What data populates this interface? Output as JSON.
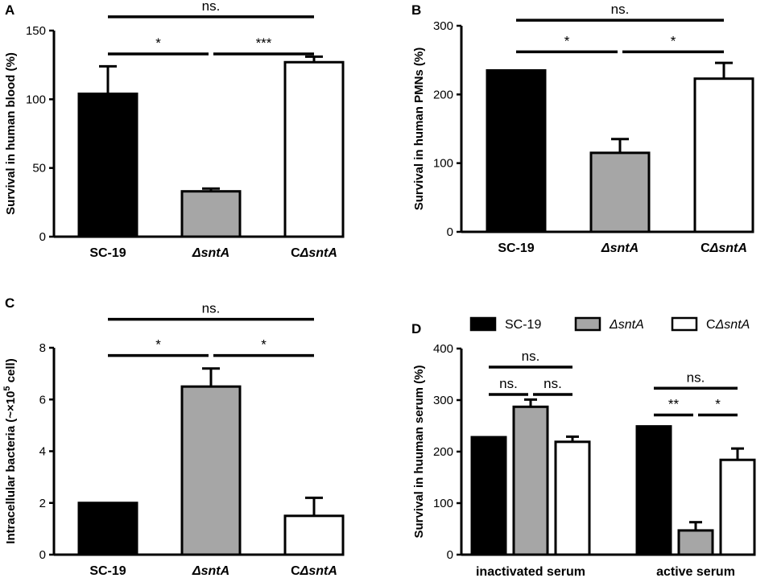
{
  "colors": {
    "bar_black": "#000000",
    "bar_gray": "#a6a6a6",
    "bar_white": "#ffffff",
    "stroke": "#000000"
  },
  "chart_data": [
    {
      "panel": "A",
      "type": "bar",
      "ylabel": "Survival in human blood (%)",
      "ylim": [
        0,
        150
      ],
      "yticks": [
        0,
        50,
        100,
        150
      ],
      "categories": [
        {
          "prefix": "",
          "italic": "",
          "plain": "SC-19"
        },
        {
          "prefix": "",
          "italic": "ΔsntA",
          "plain": ""
        },
        {
          "prefix": "C",
          "italic": "ΔsntA",
          "plain": ""
        }
      ],
      "values": [
        104,
        33,
        127
      ],
      "errors": [
        20,
        2,
        4
      ],
      "fills": [
        "#000000",
        "#a6a6a6",
        "#ffffff"
      ],
      "significance": [
        {
          "from": 0,
          "to": 1,
          "y": 133,
          "label": "*"
        },
        {
          "from": 1,
          "to": 2,
          "y": 133,
          "label": "***"
        },
        {
          "from": 0,
          "to": 2,
          "y": 160,
          "label": "ns."
        }
      ]
    },
    {
      "panel": "B",
      "type": "bar",
      "ylabel": "Survival in human PMNs (%)",
      "ylim": [
        0,
        300
      ],
      "yticks": [
        0,
        100,
        200,
        300
      ],
      "categories": [
        {
          "prefix": "",
          "italic": "",
          "plain": "SC-19"
        },
        {
          "prefix": "",
          "italic": "ΔsntA",
          "plain": ""
        },
        {
          "prefix": "C",
          "italic": "ΔsntA",
          "plain": ""
        }
      ],
      "values": [
        235,
        115,
        223
      ],
      "errors": [
        0,
        20,
        23
      ],
      "fills": [
        "#000000",
        "#a6a6a6",
        "#ffffff"
      ],
      "significance": [
        {
          "from": 0,
          "to": 1,
          "y": 262,
          "label": "*"
        },
        {
          "from": 1,
          "to": 2,
          "y": 262,
          "label": "*"
        },
        {
          "from": 0,
          "to": 2,
          "y": 308,
          "label": "ns."
        }
      ]
    },
    {
      "panel": "C",
      "type": "bar",
      "ylabel_main": "Intracellular bacteria (~×10",
      "ylabel_sup": "5",
      "ylabel_end": " cell)",
      "ylim": [
        0,
        8
      ],
      "yticks": [
        0,
        2,
        4,
        6,
        8
      ],
      "categories": [
        {
          "prefix": "",
          "italic": "",
          "plain": "SC-19"
        },
        {
          "prefix": "",
          "italic": "ΔsntA",
          "plain": ""
        },
        {
          "prefix": "C",
          "italic": "ΔsntA",
          "plain": ""
        }
      ],
      "values": [
        2.0,
        6.5,
        1.5
      ],
      "errors": [
        0,
        0.7,
        0.7
      ],
      "fills": [
        "#000000",
        "#a6a6a6",
        "#ffffff"
      ],
      "significance": [
        {
          "from": 0,
          "to": 1,
          "y": 7.7,
          "label": "*"
        },
        {
          "from": 1,
          "to": 2,
          "y": 7.7,
          "label": "*"
        },
        {
          "from": 0,
          "to": 2,
          "y": 9.1,
          "label": "ns."
        }
      ]
    },
    {
      "panel": "D",
      "type": "grouped_bar",
      "ylabel": "Survival in huuman serum (%)",
      "ylim": [
        0,
        400
      ],
      "yticks": [
        0,
        100,
        200,
        300,
        400
      ],
      "groups": [
        "inactivated serum",
        "active serum"
      ],
      "series": [
        {
          "prefix": "",
          "italic": "",
          "plain": "SC-19",
          "fill": "#000000",
          "values": [
            228,
            249
          ],
          "errors": [
            0,
            0
          ]
        },
        {
          "prefix": "",
          "italic": "ΔsntA",
          "plain": "",
          "fill": "#a6a6a6",
          "values": [
            287,
            47
          ],
          "errors": [
            14,
            16
          ]
        },
        {
          "prefix": "C",
          "italic": "ΔsntA",
          "plain": "",
          "fill": "#ffffff",
          "values": [
            219,
            184
          ],
          "errors": [
            10,
            22
          ]
        }
      ],
      "significance": [
        {
          "group": 0,
          "from": 0,
          "to": 1,
          "y": 311,
          "label": "ns."
        },
        {
          "group": 0,
          "from": 1,
          "to": 2,
          "y": 311,
          "label": "ns."
        },
        {
          "group": 0,
          "from": 0,
          "to": 2,
          "y": 364,
          "label": "ns."
        },
        {
          "group": 1,
          "from": 0,
          "to": 1,
          "y": 271,
          "label": "**"
        },
        {
          "group": 1,
          "from": 1,
          "to": 2,
          "y": 271,
          "label": "*"
        },
        {
          "group": 1,
          "from": 0,
          "to": 2,
          "y": 323,
          "label": "ns."
        }
      ]
    }
  ]
}
